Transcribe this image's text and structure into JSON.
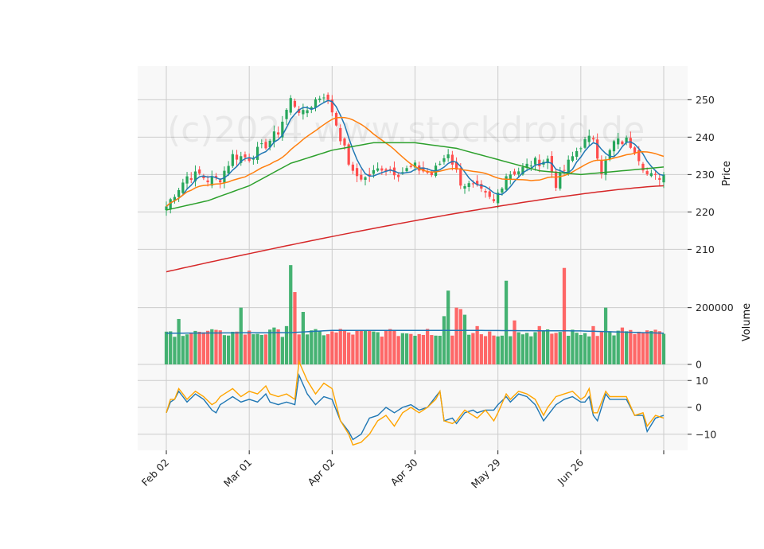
{
  "watermark": "(c)2024 www.stockdroid.de",
  "chart_data": {
    "type": "candlestick",
    "x_ticks": [
      {
        "label": "Feb 02",
        "index": 0
      },
      {
        "label": "Mar 01",
        "index": 20
      },
      {
        "label": "Apr 02",
        "index": 40
      },
      {
        "label": "Apr 30",
        "index": 60
      },
      {
        "label": "May 29",
        "index": 80
      },
      {
        "label": "Jun 26",
        "index": 100
      },
      {
        "label": "",
        "index": 120
      }
    ],
    "price_panel": {
      "ylabel": "Price",
      "ylim": [
        202,
        259
      ],
      "yticks": [
        210,
        220,
        230,
        240,
        250
      ],
      "close_anchors": [
        [
          0,
          221.5
        ],
        [
          2,
          225
        ],
        [
          5,
          229.5
        ],
        [
          8,
          230
        ],
        [
          10,
          228.5
        ],
        [
          13,
          229
        ],
        [
          16,
          235
        ],
        [
          20,
          234.5
        ],
        [
          24,
          238
        ],
        [
          27,
          241.5
        ],
        [
          30,
          250
        ],
        [
          33,
          246
        ],
        [
          36,
          250
        ],
        [
          38,
          251.5
        ],
        [
          40,
          247
        ],
        [
          42,
          240
        ],
        [
          45,
          230
        ],
        [
          48,
          229
        ],
        [
          52,
          232
        ],
        [
          56,
          230.5
        ],
        [
          60,
          232
        ],
        [
          64,
          230
        ],
        [
          68,
          236
        ],
        [
          71,
          228
        ],
        [
          75,
          226
        ],
        [
          79,
          222.5
        ],
        [
          82,
          230
        ],
        [
          86,
          231.5
        ],
        [
          88,
          233
        ],
        [
          92,
          234
        ],
        [
          94,
          227.5
        ],
        [
          97,
          233
        ],
        [
          100,
          238
        ],
        [
          103,
          240
        ],
        [
          105,
          231
        ],
        [
          108,
          238.5
        ],
        [
          111,
          239
        ],
        [
          113,
          237
        ],
        [
          116,
          230
        ],
        [
          118,
          229
        ],
        [
          120,
          230
        ]
      ],
      "moving_averages": [
        {
          "period": 5,
          "color": "#1f77b4"
        },
        {
          "period": 20,
          "color": "#ff7f0e"
        },
        {
          "period": 50,
          "color": "#2ca02c"
        },
        {
          "period": 200,
          "color": "#d62728"
        }
      ],
      "ma200_range": [
        204,
        227
      ],
      "ma50_anchors": [
        [
          0,
          220.5
        ],
        [
          10,
          223
        ],
        [
          20,
          227
        ],
        [
          30,
          233
        ],
        [
          40,
          236.5
        ],
        [
          50,
          238.5
        ],
        [
          60,
          238.5
        ],
        [
          70,
          237
        ],
        [
          80,
          234
        ],
        [
          90,
          231
        ],
        [
          100,
          230
        ],
        [
          110,
          231
        ],
        [
          120,
          232
        ]
      ]
    },
    "volume_panel": {
      "ylabel": "Volume",
      "ylim": [
        0,
        300000
      ],
      "yticks": [
        0,
        200000
      ],
      "base": 108000,
      "spikes": [
        [
          3,
          160000
        ],
        [
          8,
          115000
        ],
        [
          13,
          120000
        ],
        [
          16,
          115000
        ],
        [
          18,
          200000
        ],
        [
          26,
          130000
        ],
        [
          29,
          135000
        ],
        [
          30,
          350000
        ],
        [
          31,
          255000
        ],
        [
          33,
          185000
        ],
        [
          42,
          125000
        ],
        [
          55,
          120000
        ],
        [
          63,
          125000
        ],
        [
          67,
          170000
        ],
        [
          68,
          260000
        ],
        [
          70,
          200000
        ],
        [
          71,
          195000
        ],
        [
          72,
          175000
        ],
        [
          75,
          135000
        ],
        [
          82,
          295000
        ],
        [
          84,
          155000
        ],
        [
          90,
          135000
        ],
        [
          96,
          340000
        ],
        [
          103,
          135000
        ],
        [
          106,
          200000
        ],
        [
          110,
          130000
        ],
        [
          116,
          120000
        ]
      ],
      "ma_color": "#1f77b4",
      "ma_anchors": [
        [
          0,
          110000
        ],
        [
          30,
          112000
        ],
        [
          40,
          120000
        ],
        [
          70,
          120000
        ],
        [
          100,
          118000
        ],
        [
          120,
          110000
        ]
      ]
    },
    "oscillator_panel": {
      "ylim": [
        -16,
        16
      ],
      "yticks": [
        -10,
        0,
        10
      ],
      "series": [
        {
          "name": "",
          "color": "#1f77b4",
          "values_anchors": [
            [
              0,
              -2
            ],
            [
              1,
              2
            ],
            [
              2,
              3
            ],
            [
              3,
              6
            ],
            [
              5,
              2
            ],
            [
              7,
              5
            ],
            [
              9,
              3
            ],
            [
              11,
              -1
            ],
            [
              12,
              -2
            ],
            [
              13,
              1
            ],
            [
              15,
              3
            ],
            [
              16,
              4
            ],
            [
              18,
              2
            ],
            [
              20,
              3
            ],
            [
              22,
              2
            ],
            [
              24,
              5
            ],
            [
              25,
              2
            ],
            [
              27,
              1
            ],
            [
              29,
              2
            ],
            [
              31,
              1
            ],
            [
              32,
              12
            ],
            [
              34,
              5
            ],
            [
              36,
              1
            ],
            [
              38,
              4
            ],
            [
              40,
              3
            ],
            [
              42,
              -5
            ],
            [
              44,
              -9
            ],
            [
              45,
              -12
            ],
            [
              47,
              -10
            ],
            [
              49,
              -4
            ],
            [
              51,
              -3
            ],
            [
              53,
              0
            ],
            [
              55,
              -2
            ],
            [
              57,
              0
            ],
            [
              59,
              1
            ],
            [
              61,
              -1
            ],
            [
              63,
              0
            ],
            [
              65,
              4
            ],
            [
              66,
              6
            ],
            [
              67,
              -5
            ],
            [
              69,
              -4
            ],
            [
              70,
              -6
            ],
            [
              72,
              -2
            ],
            [
              74,
              -1
            ],
            [
              75,
              -2
            ],
            [
              77,
              -1
            ],
            [
              79,
              -1
            ],
            [
              80,
              1
            ],
            [
              82,
              4
            ],
            [
              83,
              2
            ],
            [
              85,
              5
            ],
            [
              87,
              4
            ],
            [
              89,
              1
            ],
            [
              91,
              -5
            ],
            [
              92,
              -3
            ],
            [
              94,
              1
            ],
            [
              96,
              3
            ],
            [
              98,
              4
            ],
            [
              100,
              2
            ],
            [
              101,
              2
            ],
            [
              102,
              4
            ],
            [
              103,
              -3
            ],
            [
              104,
              -5
            ],
            [
              106,
              5
            ],
            [
              107,
              3
            ],
            [
              109,
              3
            ],
            [
              111,
              3
            ],
            [
              113,
              -3
            ],
            [
              115,
              -3
            ],
            [
              116,
              -9
            ],
            [
              118,
              -4
            ],
            [
              120,
              -3
            ]
          ]
        },
        {
          "name": "",
          "color": "#ffa500",
          "values_anchors": [
            [
              0,
              -2
            ],
            [
              1,
              3
            ],
            [
              2,
              3
            ],
            [
              3,
              7
            ],
            [
              5,
              3
            ],
            [
              7,
              6
            ],
            [
              9,
              4
            ],
            [
              11,
              1
            ],
            [
              12,
              2
            ],
            [
              13,
              4
            ],
            [
              15,
              6
            ],
            [
              16,
              7
            ],
            [
              18,
              4
            ],
            [
              20,
              6
            ],
            [
              22,
              5
            ],
            [
              24,
              8
            ],
            [
              25,
              5
            ],
            [
              27,
              4
            ],
            [
              29,
              5
            ],
            [
              31,
              3
            ],
            [
              32,
              17
            ],
            [
              34,
              10
            ],
            [
              36,
              5
            ],
            [
              38,
              9
            ],
            [
              40,
              7
            ],
            [
              42,
              -5
            ],
            [
              44,
              -10
            ],
            [
              45,
              -14
            ],
            [
              47,
              -13
            ],
            [
              49,
              -10
            ],
            [
              51,
              -5
            ],
            [
              53,
              -3
            ],
            [
              55,
              -7
            ],
            [
              57,
              -2
            ],
            [
              59,
              0
            ],
            [
              61,
              -2
            ],
            [
              63,
              0
            ],
            [
              65,
              3
            ],
            [
              66,
              6
            ],
            [
              67,
              -5
            ],
            [
              69,
              -6
            ],
            [
              70,
              -5
            ],
            [
              72,
              -1
            ],
            [
              74,
              -3
            ],
            [
              75,
              -4
            ],
            [
              77,
              -1
            ],
            [
              79,
              -5
            ],
            [
              80,
              -2
            ],
            [
              82,
              5
            ],
            [
              83,
              3
            ],
            [
              85,
              6
            ],
            [
              87,
              5
            ],
            [
              89,
              3
            ],
            [
              91,
              -3
            ],
            [
              92,
              0
            ],
            [
              94,
              4
            ],
            [
              96,
              5
            ],
            [
              98,
              6
            ],
            [
              100,
              3
            ],
            [
              101,
              4
            ],
            [
              102,
              7
            ],
            [
              103,
              -2
            ],
            [
              104,
              -2
            ],
            [
              106,
              6
            ],
            [
              107,
              4
            ],
            [
              109,
              4
            ],
            [
              111,
              4
            ],
            [
              113,
              -3
            ],
            [
              115,
              -2
            ],
            [
              116,
              -7
            ],
            [
              118,
              -3
            ],
            [
              120,
              -4
            ]
          ]
        }
      ]
    },
    "colors": {
      "up": "#26a65b",
      "down": "#ff4d4d",
      "grid": "#cccccc",
      "panel_bg": "#f8f8f8"
    },
    "n_points": 121
  }
}
